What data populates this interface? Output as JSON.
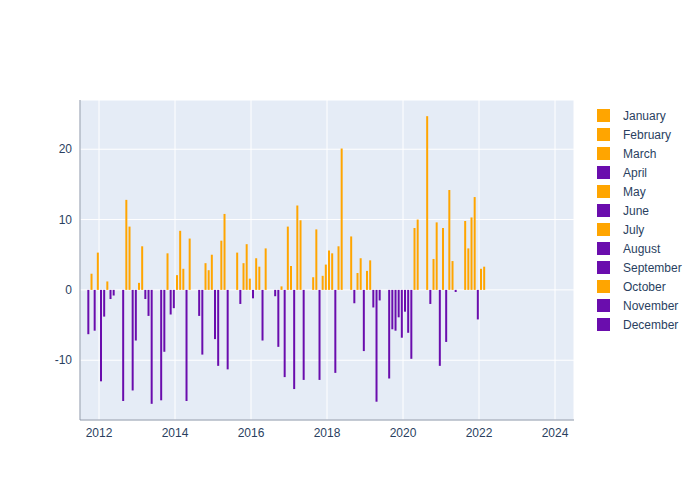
{
  "chart_data": {
    "type": "bar",
    "grid": true,
    "legend": "right",
    "xlim": [
      2011.5,
      2024.5
    ],
    "xticks": [
      2012,
      2014,
      2016,
      2018,
      2020,
      2022,
      2024
    ],
    "ylim": [
      -18.5,
      27
    ],
    "yticks": [
      -10,
      0,
      10,
      20
    ],
    "series": [
      {
        "name": "January",
        "color": "#FFA500",
        "x": [
          2012.042,
          2013.042,
          2014.042,
          2015.042,
          2016.042,
          2017.042,
          2018.042,
          2019.042,
          2020.042,
          2021.042,
          2022.042
        ],
        "values": [
          -13,
          1.0,
          2.1,
          -7.0,
          -1.2,
          3.4,
          5.6,
          2.7,
          -3.1,
          8.8,
          3.0
        ],
        "colors": [
          "#6A0DAD",
          "#FFA500",
          "#FFA500",
          "#6A0DAD",
          "#6A0DAD",
          "#FFA500",
          "#FFA500",
          "#FFA500",
          "#6A0DAD",
          "#FFA500",
          "#FFA500"
        ]
      },
      {
        "name": "February",
        "color": "#FFA500",
        "x": [
          2012.125,
          2013.125,
          2014.125,
          2015.125,
          2016.125,
          2017.125,
          2018.125,
          2019.125,
          2020.125,
          2021.125,
          2022.125
        ],
        "values": [
          -3.8,
          6.2,
          8.4,
          -10.8,
          4.5,
          -14.1,
          5.2,
          4.2,
          -6.1,
          -7.4,
          3.3
        ],
        "colors": [
          "#6A0DAD",
          "#FFA500",
          "#FFA500",
          "#6A0DAD",
          "#FFA500",
          "#6A0DAD",
          "#FFA500",
          "#FFA500",
          "#6A0DAD",
          "#6A0DAD",
          "#FFA500"
        ]
      },
      {
        "name": "March",
        "color": "#FFA500",
        "x": [
          2012.208,
          2013.208,
          2014.208,
          2015.208,
          2016.208,
          2017.208,
          2018.208,
          2019.208,
          2020.208,
          2021.208
        ],
        "values": [
          1.2,
          -1.3,
          3.0,
          7.0,
          3.3,
          12.0,
          -11.8,
          -2.5,
          -9.8,
          14.2
        ],
        "colors": [
          "#FFA500",
          "#6A0DAD",
          "#FFA500",
          "#FFA500",
          "#FFA500",
          "#FFA500",
          "#6A0DAD",
          "#6A0DAD",
          "#6A0DAD",
          "#FFA500"
        ]
      },
      {
        "name": "April",
        "color": "#6A0DAD",
        "x": [
          2012.292,
          2013.292,
          2014.292,
          2015.292,
          2016.292,
          2017.292,
          2018.292,
          2019.292,
          2020.292,
          2021.292
        ],
        "values": [
          -1.3,
          -3.7,
          -15.8,
          10.8,
          -7.2,
          9.9,
          6.2,
          -15.9,
          8.8,
          4.1
        ],
        "colors": [
          "#6A0DAD",
          "#6A0DAD",
          "#6A0DAD",
          "#FFA500",
          "#6A0DAD",
          "#FFA500",
          "#FFA500",
          "#6A0DAD",
          "#FFA500",
          "#FFA500"
        ]
      },
      {
        "name": "May",
        "color": "#FFA500",
        "x": [
          2012.375,
          2013.375,
          2014.375,
          2015.375,
          2016.375,
          2017.375,
          2018.375,
          2019.375,
          2020.375,
          2021.375
        ],
        "values": [
          -0.8,
          -16.2,
          7.3,
          -11.3,
          5.9,
          -12.8,
          20.1,
          -1.5,
          10.0,
          -0.3
        ],
        "colors": [
          "#6A0DAD",
          "#6A0DAD",
          "#FFA500",
          "#6A0DAD",
          "#FFA500",
          "#6A0DAD",
          "#FFA500",
          "#6A0DAD",
          "#FFA500",
          "#6A0DAD"
        ]
      },
      {
        "name": "June",
        "color": "#6A0DAD",
        "x": [],
        "values": [],
        "colors": []
      },
      {
        "name": "July",
        "color": "#FFA500",
        "x": [],
        "values": [],
        "colors": []
      },
      {
        "name": "August",
        "color": "#6A0DAD",
        "x": [
          2012.625,
          2013.625,
          2014.625,
          2015.625,
          2016.625,
          2017.625,
          2018.625,
          2019.625,
          2020.625,
          2021.625
        ],
        "values": [
          -15.8,
          -15.7,
          -3.7,
          5.3,
          -0.9,
          1.8,
          7.6,
          -12.6,
          24.7,
          9.8
        ],
        "colors": [
          "#6A0DAD",
          "#6A0DAD",
          "#6A0DAD",
          "#FFA500",
          "#6A0DAD",
          "#FFA500",
          "#FFA500",
          "#6A0DAD",
          "#FFA500",
          "#FFA500"
        ]
      },
      {
        "name": "September",
        "color": "#6A0DAD",
        "x": [
          2011.708,
          2012.708,
          2013.708,
          2014.708,
          2015.708,
          2016.708,
          2017.708,
          2018.708,
          2019.708,
          2020.708,
          2021.708
        ],
        "values": [
          -6.3,
          12.8,
          -8.8,
          -9.2,
          -2.0,
          -8.1,
          8.6,
          -1.9,
          -5.6,
          -2.0,
          5.9
        ],
        "colors": [
          "#6A0DAD",
          "#FFA500",
          "#6A0DAD",
          "#6A0DAD",
          "#6A0DAD",
          "#6A0DAD",
          "#FFA500",
          "#6A0DAD",
          "#6A0DAD",
          "#6A0DAD",
          "#FFA500"
        ]
      },
      {
        "name": "October",
        "color": "#FFA500",
        "x": [
          2011.792,
          2012.792,
          2013.792,
          2014.792,
          2015.792,
          2016.792,
          2017.792,
          2018.792,
          2019.792,
          2020.792,
          2021.792
        ],
        "values": [
          2.3,
          9.0,
          5.2,
          3.8,
          3.8,
          0.5,
          -12.8,
          2.4,
          -5.8,
          4.4,
          10.3
        ],
        "colors": [
          "#FFA500",
          "#FFA500",
          "#FFA500",
          "#FFA500",
          "#FFA500",
          "#FFA500",
          "#6A0DAD",
          "#FFA500",
          "#6A0DAD",
          "#FFA500",
          "#FFA500"
        ]
      },
      {
        "name": "November",
        "color": "#6A0DAD",
        "x": [
          2011.875,
          2012.875,
          2013.875,
          2014.875,
          2015.875,
          2016.875,
          2017.875,
          2018.875,
          2019.875,
          2020.875,
          2021.875
        ],
        "values": [
          -5.8,
          -14.3,
          -3.5,
          2.8,
          6.5,
          -12.4,
          2.0,
          4.5,
          -3.9,
          9.6,
          13.2
        ],
        "colors": [
          "#6A0DAD",
          "#6A0DAD",
          "#6A0DAD",
          "#FFA500",
          "#FFA500",
          "#6A0DAD",
          "#FFA500",
          "#FFA500",
          "#6A0DAD",
          "#FFA500",
          "#FFA500"
        ]
      },
      {
        "name": "December",
        "color": "#6A0DAD",
        "x": [
          2011.958,
          2012.958,
          2013.958,
          2014.958,
          2015.958,
          2016.958,
          2017.958,
          2018.958,
          2019.958,
          2020.958,
          2021.958
        ],
        "values": [
          5.3,
          -7.2,
          -2.6,
          5.0,
          1.6,
          9.0,
          3.6,
          -8.7,
          -6.8,
          -10.8,
          -4.2
        ],
        "colors": [
          "#FFA500",
          "#6A0DAD",
          "#6A0DAD",
          "#FFA500",
          "#FFA500",
          "#FFA500",
          "#FFA500",
          "#6A0DAD",
          "#6A0DAD",
          "#6A0DAD",
          "#6A0DAD"
        ]
      }
    ]
  }
}
